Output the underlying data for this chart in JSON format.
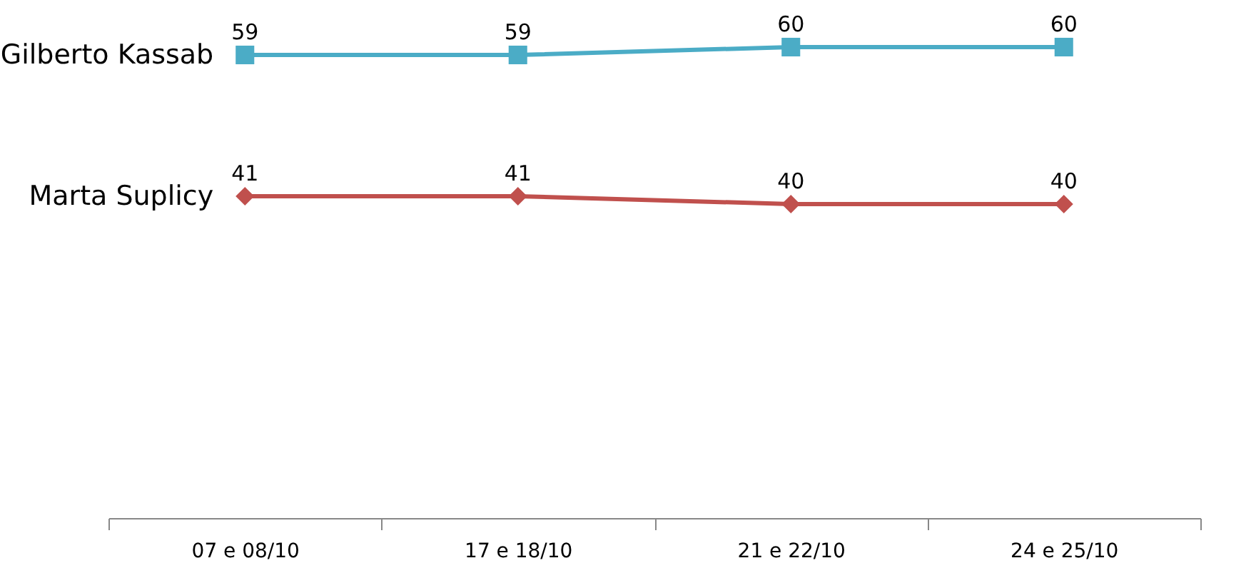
{
  "chart_data": {
    "type": "line",
    "categories": [
      "07 e 08/10",
      "17 e 18/10",
      "21 e 22/10",
      "24 e 25/10"
    ],
    "series": [
      {
        "name": "Gilberto Kassab",
        "color": "#4bacc6",
        "marker": "square",
        "values": [
          59,
          59,
          60,
          60
        ]
      },
      {
        "name": "Marta Suplicy",
        "color": "#c0504d",
        "marker": "diamond",
        "values": [
          41,
          41,
          40,
          40
        ]
      }
    ],
    "data_labels": true,
    "legend": false,
    "grid": false,
    "tick_labels": "x",
    "line_style": "solid"
  }
}
